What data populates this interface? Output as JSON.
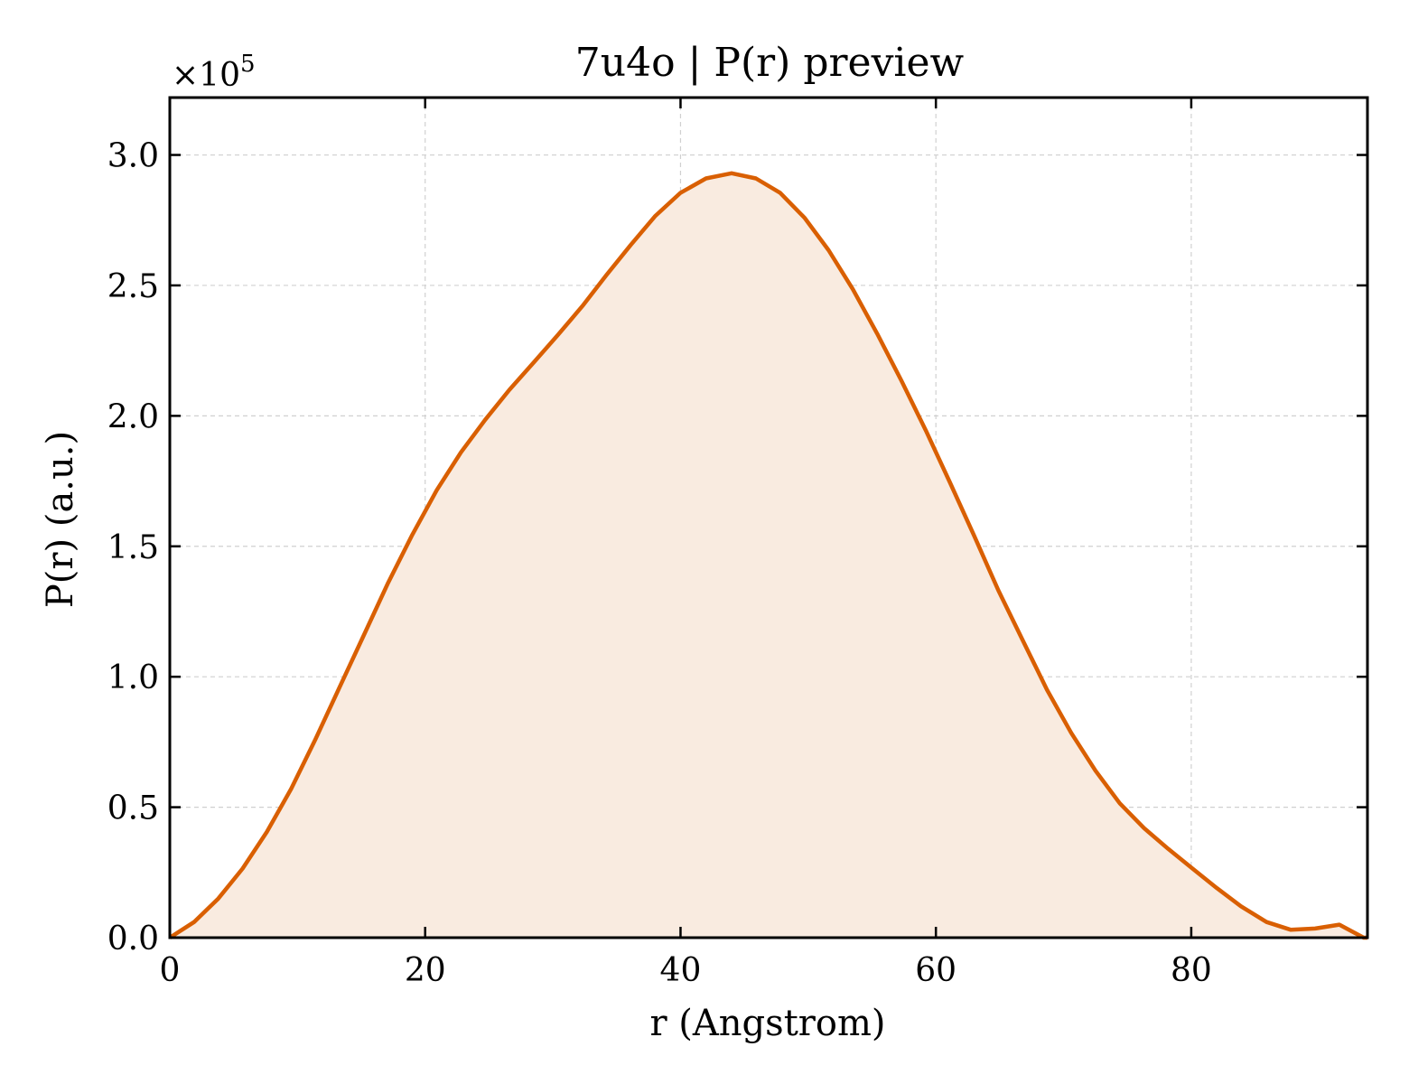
{
  "chart_data": {
    "type": "area",
    "title": "7u4o | P(r) preview",
    "xlabel": "r (Angstrom)",
    "ylabel": "P(r) (a.u.)",
    "y_offset_label": "×10",
    "y_offset_exponent": "5",
    "y_multiplier": 100000,
    "xlim": [
      0,
      93.8
    ],
    "ylim": [
      0,
      3.22
    ],
    "xticks": [
      0,
      20,
      40,
      60,
      80
    ],
    "xtick_labels": [
      "0",
      "20",
      "40",
      "60",
      "80"
    ],
    "yticks": [
      0.0,
      0.5,
      1.0,
      1.5,
      2.0,
      2.5,
      3.0
    ],
    "ytick_labels": [
      "0.0",
      "0.5",
      "1.0",
      "1.5",
      "2.0",
      "2.5",
      "3.0"
    ],
    "grid": true,
    "line_color": "#d95f02",
    "fill_color": "#f9ebe0",
    "series": [
      {
        "x": [
          0,
          1.9,
          3.8,
          5.7,
          7.6,
          9.5,
          11.4,
          13.3,
          15.2,
          17.1,
          19.0,
          20.9,
          22.8,
          24.7,
          26.6,
          28.5,
          30.4,
          32.3,
          34.2,
          36.1,
          38.0,
          40.0,
          42.0,
          44.0,
          45.9,
          47.8,
          49.7,
          51.6,
          53.5,
          55.4,
          57.3,
          59.2,
          61.1,
          63.0,
          64.9,
          66.8,
          68.7,
          70.6,
          72.5,
          74.4,
          76.3,
          78.2,
          80.1,
          82.0,
          83.9,
          85.9,
          87.8,
          89.7,
          91.6,
          93.5,
          93.8
        ],
        "values": [
          0.0,
          0.06,
          0.15,
          0.265,
          0.405,
          0.57,
          0.76,
          0.96,
          1.16,
          1.36,
          1.545,
          1.715,
          1.86,
          1.985,
          2.1,
          2.205,
          2.31,
          2.42,
          2.54,
          2.655,
          2.765,
          2.855,
          2.91,
          2.93,
          2.91,
          2.855,
          2.76,
          2.635,
          2.485,
          2.315,
          2.135,
          1.945,
          1.745,
          1.54,
          1.33,
          1.14,
          0.95,
          0.785,
          0.64,
          0.515,
          0.42,
          0.34,
          0.265,
          0.19,
          0.12,
          0.06,
          0.03,
          0.035,
          0.05,
          0.0,
          0.0
        ]
      }
    ]
  }
}
